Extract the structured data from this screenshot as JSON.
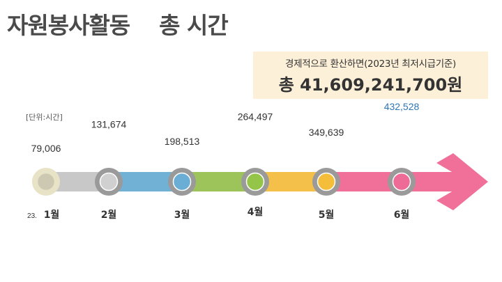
{
  "header": {
    "title": "자원봉사활동    총 시간"
  },
  "economic": {
    "note": "경제적으로 환산하면(2023년 최저시급기준)",
    "total": "총 41,609,241,700원"
  },
  "unit_note": "[단위:시간]",
  "year_prefix": "23.",
  "chart_data": {
    "type": "line",
    "categories": [
      "1월",
      "2월",
      "3월",
      "4월",
      "5월",
      "6월"
    ],
    "value_labels": [
      "79,006",
      "131,674",
      "198,513",
      "264,497",
      "349,639",
      "432,528"
    ],
    "values": [
      79006,
      131674,
      198513,
      264497,
      349639,
      432528
    ],
    "ylabel": "[단위:시간]",
    "highlight_index": 5,
    "segment_colors": [
      "#e0d9c0",
      "#c8c8c8",
      "#72b1d6",
      "#9dc45a",
      "#f5c04a",
      "#f07099"
    ],
    "node_colors": [
      "#cdc8b2",
      "#d0d0d0",
      "#6aaed6",
      "#95c548",
      "#f4bd3a",
      "#ee6b98"
    ],
    "highlight_color": "#2e75b6"
  }
}
